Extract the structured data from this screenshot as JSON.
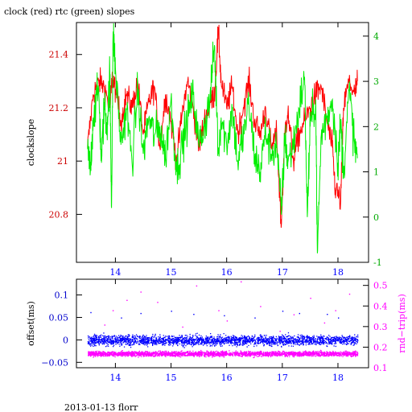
{
  "title": "clock (red) rtc (green) slopes",
  "footer": "2013-01-13 florr",
  "colors": {
    "clock": "#ff0000",
    "rtc": "#00ee00",
    "offset": "#0000ff",
    "rndtrip": "#ff00ff",
    "axes": "#000000"
  },
  "chart_data": [
    {
      "type": "line",
      "title": "clock (red) rtc (green) slopes",
      "xlabel": "",
      "ylabel": "clockslope",
      "ylabel_right": "",
      "xlim": [
        13.3,
        18.55
      ],
      "ylim": [
        20.62,
        21.52
      ],
      "ylim_right": [
        -1.0,
        4.3
      ],
      "x_ticks": [
        14,
        15,
        16,
        17,
        18
      ],
      "y_ticks": [
        20.8,
        21,
        21.2,
        21.4
      ],
      "y_tick_labels": [
        "20.8",
        "21",
        "21.2",
        "21.4"
      ],
      "y_ticks_right": [
        -1,
        0,
        1,
        2,
        3,
        4
      ],
      "series": [
        {
          "name": "clock",
          "axis": "left",
          "color": "#ff0000",
          "x": [
            13.5,
            13.6,
            13.7,
            13.8,
            13.9,
            13.95,
            14.0,
            14.1,
            14.2,
            14.3,
            14.4,
            14.5,
            14.6,
            14.7,
            14.8,
            14.9,
            15.0,
            15.1,
            15.2,
            15.3,
            15.4,
            15.5,
            15.6,
            15.7,
            15.78,
            15.85,
            15.9,
            16.0,
            16.1,
            16.2,
            16.3,
            16.4,
            16.5,
            16.6,
            16.7,
            16.8,
            16.9,
            16.98,
            17.05,
            17.1,
            17.2,
            17.3,
            17.4,
            17.5,
            17.6,
            17.7,
            17.8,
            17.9,
            17.95,
            18.05,
            18.1,
            18.2,
            18.3,
            18.35
          ],
          "y": [
            21.05,
            21.25,
            21.3,
            21.28,
            21.2,
            21.32,
            21.27,
            21.15,
            21.25,
            21.2,
            21.3,
            21.1,
            21.22,
            21.28,
            21.05,
            21.25,
            21.15,
            21.0,
            21.18,
            21.3,
            21.2,
            21.05,
            21.15,
            21.22,
            21.25,
            21.49,
            21.3,
            21.2,
            21.28,
            21.1,
            21.2,
            21.3,
            21.15,
            21.1,
            21.2,
            21.05,
            21.1,
            20.75,
            21.12,
            21.18,
            21.0,
            21.1,
            21.15,
            21.2,
            21.25,
            21.28,
            21.15,
            21.05,
            20.9,
            20.85,
            21.2,
            21.3,
            21.25,
            21.3
          ]
        },
        {
          "name": "rtc",
          "axis": "right",
          "color": "#00ee00",
          "x": [
            13.5,
            13.55,
            13.6,
            13.7,
            13.75,
            13.8,
            13.85,
            13.9,
            13.93,
            13.96,
            14.0,
            14.1,
            14.2,
            14.3,
            14.4,
            14.5,
            14.6,
            14.7,
            14.8,
            14.9,
            15.0,
            15.1,
            15.2,
            15.3,
            15.4,
            15.5,
            15.6,
            15.7,
            15.78,
            15.85,
            15.9,
            16.0,
            16.1,
            16.2,
            16.3,
            16.4,
            16.5,
            16.6,
            16.7,
            16.8,
            16.9,
            16.98,
            17.05,
            17.1,
            17.2,
            17.3,
            17.4,
            17.45,
            17.5,
            17.6,
            17.63,
            17.7,
            17.8,
            17.9,
            18.0,
            18.05,
            18.1,
            18.2,
            18.3,
            18.35
          ],
          "y": [
            1.5,
            1.0,
            2.2,
            2.8,
            1.2,
            2.5,
            2.0,
            3.2,
            0.2,
            4.1,
            3.3,
            1.6,
            2.4,
            1.2,
            2.8,
            1.4,
            2.2,
            1.8,
            2.0,
            1.3,
            2.6,
            1.0,
            1.6,
            2.2,
            2.7,
            1.6,
            2.0,
            2.6,
            3.8,
            1.4,
            2.2,
            1.6,
            2.4,
            1.2,
            1.8,
            2.5,
            1.4,
            1.0,
            1.9,
            1.4,
            1.6,
            0.1,
            1.8,
            1.2,
            1.6,
            2.4,
            3.1,
            0.0,
            2.0,
            2.6,
            -0.8,
            1.8,
            2.2,
            2.6,
            1.2,
            2.1,
            1.0,
            2.8,
            1.6,
            1.3
          ]
        }
      ]
    },
    {
      "type": "scatter",
      "title": "",
      "xlabel": "",
      "ylabel": "offset(ms)",
      "ylabel_right": "rnd−trip(ms)",
      "xlim": [
        13.3,
        18.55
      ],
      "ylim": [
        -0.062,
        0.135
      ],
      "ylim_right": [
        0.1,
        0.53
      ],
      "x_ticks": [
        14,
        15,
        16,
        17,
        18
      ],
      "y_ticks": [
        -0.05,
        0,
        0.05,
        0.1
      ],
      "y_tick_labels": [
        "−0.05",
        "0",
        "0.05",
        "0.1"
      ],
      "y_ticks_right": [
        0.1,
        0.2,
        0.3,
        0.4,
        0.5
      ],
      "series": [
        {
          "name": "offset",
          "axis": "left",
          "color": "#0000ff",
          "x_range": [
            13.5,
            18.35
          ],
          "center": 0.0,
          "spread": 0.02,
          "outliers": [
            [
              13.55,
              0.062
            ],
            [
              14.1,
              0.05
            ],
            [
              14.45,
              0.06
            ],
            [
              15.0,
              0.065
            ],
            [
              15.4,
              0.058
            ],
            [
              15.95,
              0.055
            ],
            [
              16.5,
              0.05
            ],
            [
              17.0,
              0.065
            ],
            [
              17.3,
              0.06
            ],
            [
              17.8,
              0.058
            ],
            [
              18.0,
              0.05
            ]
          ]
        },
        {
          "name": "rnd-trip",
          "axis": "right",
          "color": "#ff00ff",
          "x_range": [
            13.5,
            18.35
          ],
          "center": 0.17,
          "spread": 0.022,
          "outliers": [
            [
              13.8,
              0.31
            ],
            [
              13.95,
              0.38
            ],
            [
              14.2,
              0.43
            ],
            [
              14.45,
              0.47
            ],
            [
              14.75,
              0.42
            ],
            [
              15.2,
              0.3
            ],
            [
              15.45,
              0.5
            ],
            [
              15.85,
              0.38
            ],
            [
              16.0,
              0.33
            ],
            [
              16.25,
              0.52
            ],
            [
              16.6,
              0.4
            ],
            [
              16.95,
              0.28
            ],
            [
              17.2,
              0.36
            ],
            [
              17.5,
              0.44
            ],
            [
              17.75,
              0.32
            ],
            [
              17.95,
              0.38
            ],
            [
              18.2,
              0.46
            ]
          ]
        }
      ]
    }
  ]
}
